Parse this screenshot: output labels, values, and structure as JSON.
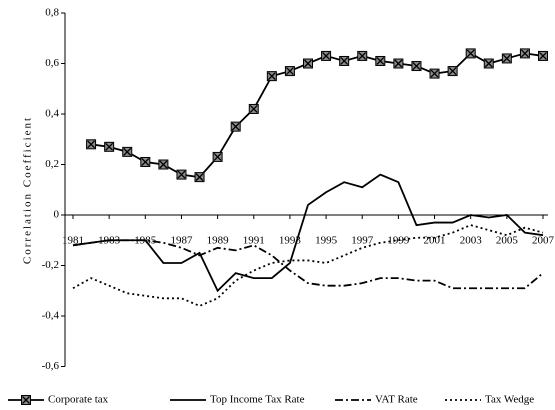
{
  "chart_data": {
    "type": "line",
    "y_label": "Correlation Coefficient",
    "x": [
      1981,
      1982,
      1983,
      1984,
      1985,
      1986,
      1987,
      1988,
      1989,
      1990,
      1991,
      1992,
      1993,
      1994,
      1995,
      1996,
      1997,
      1998,
      1999,
      2000,
      2001,
      2002,
      2003,
      2004,
      2005,
      2006,
      2007
    ],
    "xlim": [
      1981,
      2007
    ],
    "xticks": [
      1981,
      1983,
      1985,
      1987,
      1989,
      1991,
      1993,
      1995,
      1997,
      1999,
      2001,
      2003,
      2005,
      2007
    ],
    "ylim": [
      -0.6,
      0.8
    ],
    "yticks": [
      {
        "value": -0.6,
        "label": "-0,6"
      },
      {
        "value": -0.4,
        "label": "-0,4"
      },
      {
        "value": -0.2,
        "label": "-0,2"
      },
      0,
      {
        "value": 0.2,
        "label": "0,2"
      },
      {
        "value": 0.4,
        "label": "0,4"
      },
      {
        "value": 0.6,
        "label": "0,6"
      },
      {
        "value": 0.8,
        "label": "0,8"
      }
    ],
    "grid": false,
    "legend": "bottom",
    "series": [
      {
        "name": "Corporate tax",
        "color": "#000000",
        "style": "solid",
        "marker": "x-square",
        "values": [
          null,
          0.28,
          0.27,
          0.25,
          0.21,
          0.2,
          0.16,
          0.15,
          0.23,
          0.35,
          0.42,
          0.55,
          0.57,
          0.6,
          0.63,
          0.61,
          0.63,
          0.61,
          0.6,
          0.59,
          0.56,
          0.57,
          0.64,
          0.6,
          0.62,
          0.64,
          0.63
        ]
      },
      {
        "name": "Top Income Tax Rate",
        "color": "#000000",
        "style": "solid",
        "values": [
          -0.12,
          -0.11,
          -0.1,
          -0.1,
          -0.1,
          -0.19,
          -0.19,
          -0.15,
          -0.3,
          -0.23,
          -0.25,
          -0.25,
          -0.19,
          0.04,
          0.09,
          0.13,
          0.11,
          0.16,
          0.13,
          -0.04,
          -0.03,
          -0.03,
          0,
          -0.01,
          0,
          -0.07,
          -0.08
        ]
      },
      {
        "name": "VAT Rate",
        "color": "#000000",
        "style": "dashdot",
        "values": [
          -0.12,
          -0.11,
          -0.1,
          -0.1,
          -0.1,
          -0.11,
          -0.13,
          -0.16,
          -0.13,
          -0.14,
          -0.12,
          -0.16,
          -0.22,
          -0.27,
          -0.28,
          -0.28,
          -0.27,
          -0.25,
          -0.25,
          -0.26,
          -0.26,
          -0.29,
          -0.29,
          -0.29,
          -0.29,
          -0.29,
          -0.23
        ]
      },
      {
        "name": "Tax Wedge",
        "color": "#000000",
        "style": "dot",
        "values": [
          -0.29,
          -0.25,
          -0.28,
          -0.31,
          -0.32,
          -0.33,
          -0.33,
          -0.36,
          -0.33,
          -0.26,
          -0.22,
          -0.19,
          -0.18,
          -0.18,
          -0.19,
          -0.16,
          -0.13,
          -0.11,
          -0.1,
          -0.09,
          -0.09,
          -0.07,
          -0.04,
          -0.06,
          -0.08,
          -0.05,
          -0.07
        ]
      }
    ]
  }
}
